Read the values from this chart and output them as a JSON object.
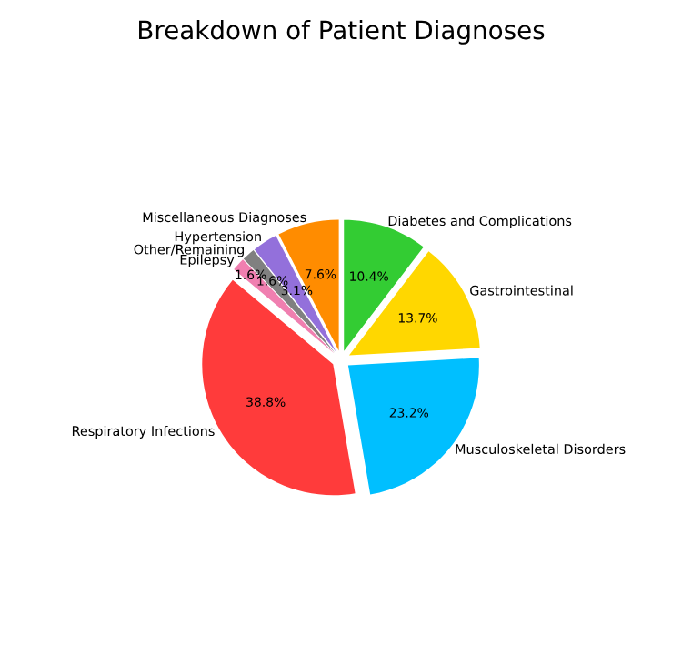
{
  "chart_data": {
    "type": "pie",
    "title": "Breakdown of Patient Diagnoses",
    "categories": [
      "Diabetes and Complications",
      "Gastrointestinal",
      "Musculoskeletal Disorders",
      "Respiratory Infections",
      "Epilepsy",
      "Other/Remaining",
      "Hypertension",
      "Miscellaneous Diagnoses"
    ],
    "values": [
      10.4,
      13.7,
      23.2,
      38.8,
      1.6,
      1.6,
      3.1,
      7.6
    ],
    "colors": [
      "#33cc33",
      "#ffd700",
      "#00bfff",
      "#ff3b3b",
      "#f07fb0",
      "#808080",
      "#9370db",
      "#ff8c00"
    ],
    "value_labels": [
      "10.4%",
      "13.7%",
      "23.2%",
      "38.8%",
      "1.6%",
      "1.6%",
      "3.1%",
      "7.6%"
    ],
    "legend": false
  }
}
